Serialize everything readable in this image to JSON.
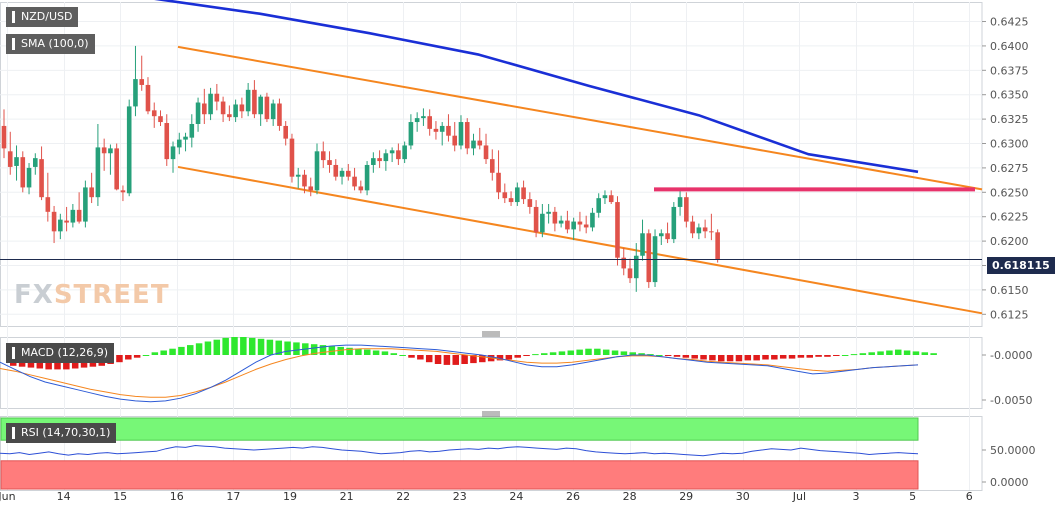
{
  "symbol_label": "NZD/USD",
  "sma_label": "SMA (100,0)",
  "macd_label": "MACD (12,26,9)",
  "rsi_label": "RSI (14,70,30,1)",
  "current_price": "0.618115",
  "watermark": {
    "part1": "FX",
    "part2": "STREET"
  },
  "colors": {
    "up": "#26a07a",
    "down": "#e0524a",
    "sma": "#1a2fd6",
    "channel": "#f5861f",
    "resistance": "#e8336b",
    "macd_hist_up": "#2ee82e",
    "macd_hist_down": "#e01b1b",
    "macd_line": "#2d5bd6",
    "signal_line": "#f5861f",
    "rsi_line": "#2d4fd6",
    "rsi_overbought": "#77f777",
    "rsi_oversold": "#ff7c7c"
  },
  "chart_data": {
    "type": "candlestick",
    "x_ticks": [
      "Jun",
      "14",
      "15",
      "16",
      "17",
      "19",
      "21",
      "22",
      "23",
      "24",
      "26",
      "28",
      "29",
      "30",
      "Jul",
      "3",
      "5",
      "6"
    ],
    "y_ticks": [
      "0.6425",
      "0.6400",
      "0.6375",
      "0.6350",
      "0.6325",
      "0.6300",
      "0.6275",
      "0.6250",
      "0.6225",
      "0.6200",
      "0.6175",
      "0.6150",
      "0.6125"
    ],
    "ylim": [
      0.6113,
      0.6445
    ],
    "candles": [
      {
        "o": 0.6318,
        "h": 0.6335,
        "l": 0.6285,
        "c": 0.6295
      },
      {
        "o": 0.6292,
        "h": 0.6312,
        "l": 0.6268,
        "c": 0.6276
      },
      {
        "o": 0.6277,
        "h": 0.6298,
        "l": 0.6262,
        "c": 0.6286
      },
      {
        "o": 0.6286,
        "h": 0.6292,
        "l": 0.625,
        "c": 0.6255
      },
      {
        "o": 0.6255,
        "h": 0.628,
        "l": 0.6248,
        "c": 0.6275
      },
      {
        "o": 0.6276,
        "h": 0.629,
        "l": 0.6268,
        "c": 0.6285
      },
      {
        "o": 0.6284,
        "h": 0.6297,
        "l": 0.6242,
        "c": 0.6245
      },
      {
        "o": 0.6245,
        "h": 0.627,
        "l": 0.622,
        "c": 0.623
      },
      {
        "o": 0.623,
        "h": 0.6236,
        "l": 0.6198,
        "c": 0.621
      },
      {
        "o": 0.621,
        "h": 0.6228,
        "l": 0.6202,
        "c": 0.6222
      },
      {
        "o": 0.6221,
        "h": 0.6235,
        "l": 0.621,
        "c": 0.6219
      },
      {
        "o": 0.6219,
        "h": 0.6238,
        "l": 0.6214,
        "c": 0.6232
      },
      {
        "o": 0.6232,
        "h": 0.625,
        "l": 0.6218,
        "c": 0.622
      },
      {
        "o": 0.622,
        "h": 0.6262,
        "l": 0.6214,
        "c": 0.6255
      },
      {
        "o": 0.6255,
        "h": 0.627,
        "l": 0.6239,
        "c": 0.6245
      },
      {
        "o": 0.6245,
        "h": 0.632,
        "l": 0.6236,
        "c": 0.6296
      },
      {
        "o": 0.6296,
        "h": 0.6305,
        "l": 0.6272,
        "c": 0.629
      },
      {
        "o": 0.629,
        "h": 0.6299,
        "l": 0.6268,
        "c": 0.6295
      },
      {
        "o": 0.6295,
        "h": 0.63,
        "l": 0.6252,
        "c": 0.6253
      },
      {
        "o": 0.6252,
        "h": 0.6257,
        "l": 0.6241,
        "c": 0.625
      },
      {
        "o": 0.6249,
        "h": 0.6345,
        "l": 0.6246,
        "c": 0.6338
      },
      {
        "o": 0.6338,
        "h": 0.64,
        "l": 0.6328,
        "c": 0.6366
      },
      {
        "o": 0.6366,
        "h": 0.639,
        "l": 0.6354,
        "c": 0.636
      },
      {
        "o": 0.636,
        "h": 0.6368,
        "l": 0.633,
        "c": 0.6333
      },
      {
        "o": 0.6334,
        "h": 0.6342,
        "l": 0.6316,
        "c": 0.6328
      },
      {
        "o": 0.6328,
        "h": 0.6334,
        "l": 0.6318,
        "c": 0.6322
      },
      {
        "o": 0.6321,
        "h": 0.633,
        "l": 0.6277,
        "c": 0.6284
      },
      {
        "o": 0.6284,
        "h": 0.6302,
        "l": 0.627,
        "c": 0.6297
      },
      {
        "o": 0.6296,
        "h": 0.6311,
        "l": 0.6289,
        "c": 0.6304
      },
      {
        "o": 0.6304,
        "h": 0.6311,
        "l": 0.6292,
        "c": 0.6307
      },
      {
        "o": 0.6306,
        "h": 0.633,
        "l": 0.6296,
        "c": 0.632
      },
      {
        "o": 0.632,
        "h": 0.6347,
        "l": 0.6312,
        "c": 0.6342
      },
      {
        "o": 0.6341,
        "h": 0.6356,
        "l": 0.632,
        "c": 0.633
      },
      {
        "o": 0.633,
        "h": 0.6357,
        "l": 0.6324,
        "c": 0.6351
      },
      {
        "o": 0.6351,
        "h": 0.6361,
        "l": 0.6334,
        "c": 0.6343
      },
      {
        "o": 0.6343,
        "h": 0.6348,
        "l": 0.6322,
        "c": 0.633
      },
      {
        "o": 0.633,
        "h": 0.6339,
        "l": 0.6323,
        "c": 0.6327
      },
      {
        "o": 0.6327,
        "h": 0.6345,
        "l": 0.6322,
        "c": 0.634
      },
      {
        "o": 0.634,
        "h": 0.6347,
        "l": 0.6326,
        "c": 0.6333
      },
      {
        "o": 0.6333,
        "h": 0.6362,
        "l": 0.6328,
        "c": 0.6355
      },
      {
        "o": 0.6355,
        "h": 0.6365,
        "l": 0.6326,
        "c": 0.633
      },
      {
        "o": 0.633,
        "h": 0.635,
        "l": 0.6318,
        "c": 0.6348
      },
      {
        "o": 0.6348,
        "h": 0.6352,
        "l": 0.6322,
        "c": 0.6325
      },
      {
        "o": 0.6325,
        "h": 0.6345,
        "l": 0.6318,
        "c": 0.6341
      },
      {
        "o": 0.6341,
        "h": 0.6346,
        "l": 0.6313,
        "c": 0.6318
      },
      {
        "o": 0.6318,
        "h": 0.6323,
        "l": 0.6298,
        "c": 0.6305
      },
      {
        "o": 0.6305,
        "h": 0.631,
        "l": 0.626,
        "c": 0.6266
      },
      {
        "o": 0.6266,
        "h": 0.6275,
        "l": 0.6254,
        "c": 0.6268
      },
      {
        "o": 0.6268,
        "h": 0.6273,
        "l": 0.6249,
        "c": 0.6256
      },
      {
        "o": 0.6256,
        "h": 0.6265,
        "l": 0.6246,
        "c": 0.6252
      },
      {
        "o": 0.6252,
        "h": 0.63,
        "l": 0.6248,
        "c": 0.6292
      },
      {
        "o": 0.6292,
        "h": 0.6302,
        "l": 0.6275,
        "c": 0.6283
      },
      {
        "o": 0.6283,
        "h": 0.6292,
        "l": 0.627,
        "c": 0.6278
      },
      {
        "o": 0.6278,
        "h": 0.6284,
        "l": 0.6262,
        "c": 0.6266
      },
      {
        "o": 0.6266,
        "h": 0.6275,
        "l": 0.6258,
        "c": 0.6272
      },
      {
        "o": 0.6272,
        "h": 0.6279,
        "l": 0.6262,
        "c": 0.6266
      },
      {
        "o": 0.6266,
        "h": 0.6275,
        "l": 0.6252,
        "c": 0.6256
      },
      {
        "o": 0.6256,
        "h": 0.6262,
        "l": 0.6249,
        "c": 0.6252
      },
      {
        "o": 0.6252,
        "h": 0.6282,
        "l": 0.6247,
        "c": 0.6278
      },
      {
        "o": 0.6278,
        "h": 0.6291,
        "l": 0.627,
        "c": 0.6285
      },
      {
        "o": 0.6285,
        "h": 0.6293,
        "l": 0.6275,
        "c": 0.6282
      },
      {
        "o": 0.6282,
        "h": 0.6294,
        "l": 0.6272,
        "c": 0.629
      },
      {
        "o": 0.629,
        "h": 0.6296,
        "l": 0.6281,
        "c": 0.6293
      },
      {
        "o": 0.6293,
        "h": 0.63,
        "l": 0.6278,
        "c": 0.6284
      },
      {
        "o": 0.6284,
        "h": 0.6302,
        "l": 0.628,
        "c": 0.6298
      },
      {
        "o": 0.6298,
        "h": 0.633,
        "l": 0.6294,
        "c": 0.6322
      },
      {
        "o": 0.6322,
        "h": 0.6332,
        "l": 0.6312,
        "c": 0.6326
      },
      {
        "o": 0.6326,
        "h": 0.6336,
        "l": 0.6318,
        "c": 0.6328
      },
      {
        "o": 0.6328,
        "h": 0.6335,
        "l": 0.6308,
        "c": 0.6315
      },
      {
        "o": 0.6315,
        "h": 0.6323,
        "l": 0.6304,
        "c": 0.6312
      },
      {
        "o": 0.6312,
        "h": 0.6322,
        "l": 0.6298,
        "c": 0.6318
      },
      {
        "o": 0.6318,
        "h": 0.633,
        "l": 0.6302,
        "c": 0.6308
      },
      {
        "o": 0.6308,
        "h": 0.6322,
        "l": 0.6292,
        "c": 0.6298
      },
      {
        "o": 0.6298,
        "h": 0.6329,
        "l": 0.6294,
        "c": 0.6322
      },
      {
        "o": 0.6322,
        "h": 0.6326,
        "l": 0.6289,
        "c": 0.6295
      },
      {
        "o": 0.6295,
        "h": 0.631,
        "l": 0.6288,
        "c": 0.6303
      },
      {
        "o": 0.6303,
        "h": 0.6316,
        "l": 0.6294,
        "c": 0.6298
      },
      {
        "o": 0.6298,
        "h": 0.631,
        "l": 0.6279,
        "c": 0.6284
      },
      {
        "o": 0.6284,
        "h": 0.6294,
        "l": 0.6262,
        "c": 0.627
      },
      {
        "o": 0.627,
        "h": 0.6293,
        "l": 0.6243,
        "c": 0.625
      },
      {
        "o": 0.625,
        "h": 0.6259,
        "l": 0.6239,
        "c": 0.6244
      },
      {
        "o": 0.6244,
        "h": 0.6251,
        "l": 0.6236,
        "c": 0.624
      },
      {
        "o": 0.624,
        "h": 0.626,
        "l": 0.6236,
        "c": 0.6255
      },
      {
        "o": 0.6255,
        "h": 0.6262,
        "l": 0.6238,
        "c": 0.6243
      },
      {
        "o": 0.6243,
        "h": 0.625,
        "l": 0.6228,
        "c": 0.6235
      },
      {
        "o": 0.6235,
        "h": 0.6242,
        "l": 0.6204,
        "c": 0.6209
      },
      {
        "o": 0.6209,
        "h": 0.6238,
        "l": 0.6204,
        "c": 0.6228
      },
      {
        "o": 0.6228,
        "h": 0.6238,
        "l": 0.6218,
        "c": 0.623
      },
      {
        "o": 0.623,
        "h": 0.6235,
        "l": 0.621,
        "c": 0.6218
      },
      {
        "o": 0.6218,
        "h": 0.6226,
        "l": 0.6214,
        "c": 0.6221
      },
      {
        "o": 0.6221,
        "h": 0.6231,
        "l": 0.6208,
        "c": 0.6212
      },
      {
        "o": 0.6212,
        "h": 0.6224,
        "l": 0.6201,
        "c": 0.622
      },
      {
        "o": 0.622,
        "h": 0.623,
        "l": 0.621,
        "c": 0.6217
      },
      {
        "o": 0.6217,
        "h": 0.6226,
        "l": 0.6208,
        "c": 0.6214
      },
      {
        "o": 0.6214,
        "h": 0.6234,
        "l": 0.621,
        "c": 0.6229
      },
      {
        "o": 0.6229,
        "h": 0.6249,
        "l": 0.6224,
        "c": 0.6244
      },
      {
        "o": 0.6244,
        "h": 0.6252,
        "l": 0.6238,
        "c": 0.6247
      },
      {
        "o": 0.6247,
        "h": 0.6252,
        "l": 0.6238,
        "c": 0.624
      },
      {
        "o": 0.624,
        "h": 0.6246,
        "l": 0.6175,
        "c": 0.6183
      },
      {
        "o": 0.6183,
        "h": 0.6193,
        "l": 0.6165,
        "c": 0.6172
      },
      {
        "o": 0.6172,
        "h": 0.6182,
        "l": 0.6157,
        "c": 0.6162
      },
      {
        "o": 0.6162,
        "h": 0.6198,
        "l": 0.6148,
        "c": 0.6185
      },
      {
        "o": 0.6185,
        "h": 0.6222,
        "l": 0.618,
        "c": 0.6208
      },
      {
        "o": 0.6208,
        "h": 0.6212,
        "l": 0.6152,
        "c": 0.6158
      },
      {
        "o": 0.6158,
        "h": 0.6212,
        "l": 0.6153,
        "c": 0.6205
      },
      {
        "o": 0.6205,
        "h": 0.6212,
        "l": 0.6196,
        "c": 0.6208
      },
      {
        "o": 0.6208,
        "h": 0.6219,
        "l": 0.6198,
        "c": 0.6202
      },
      {
        "o": 0.6202,
        "h": 0.624,
        "l": 0.6198,
        "c": 0.6235
      },
      {
        "o": 0.6235,
        "h": 0.6252,
        "l": 0.6226,
        "c": 0.6245
      },
      {
        "o": 0.6245,
        "h": 0.625,
        "l": 0.6214,
        "c": 0.622
      },
      {
        "o": 0.622,
        "h": 0.6226,
        "l": 0.6203,
        "c": 0.6208
      },
      {
        "o": 0.6208,
        "h": 0.6218,
        "l": 0.6202,
        "c": 0.6214
      },
      {
        "o": 0.6214,
        "h": 0.6222,
        "l": 0.6203,
        "c": 0.621
      },
      {
        "o": 0.621,
        "h": 0.6228,
        "l": 0.6201,
        "c": 0.6209
      },
      {
        "o": 0.6209,
        "h": 0.6212,
        "l": 0.6178,
        "c": 0.6181
      }
    ],
    "sma100": [
      [
        0.6445,
        0.6449
      ],
      [
        0.64,
        0.6433
      ],
      [
        0.635,
        0.6413
      ],
      [
        0.63,
        0.6391
      ],
      [
        0.625,
        0.6359
      ],
      [
        0.62,
        0.6329
      ],
      [
        0.615,
        0.6289
      ],
      [
        0.61,
        0.6271
      ]
    ],
    "channel_upper": [
      [
        0.6399,
        0.6253
      ]
    ],
    "channel_lower": [
      [
        0.6276,
        0.6126
      ]
    ],
    "resistance_level": 0.6253,
    "macd_y_ticks": [
      "-0.0000",
      "-0.0050"
    ],
    "macd_histogram": [
      -0.0012,
      -0.0013,
      -0.0014,
      -0.0015,
      -0.0016,
      -0.0016,
      -0.0016,
      -0.0015,
      -0.0014,
      -0.0013,
      -0.0012,
      -0.001,
      -0.0008,
      -0.0005,
      -0.0003,
      0.0,
      0.0003,
      0.0005,
      0.0007,
      0.0009,
      0.0011,
      0.0013,
      0.0015,
      0.0017,
      0.0019,
      0.002,
      0.002,
      0.0019,
      0.0018,
      0.0017,
      0.0016,
      0.0015,
      0.0014,
      0.0013,
      0.0012,
      0.0011,
      0.001,
      0.0009,
      0.0008,
      0.0007,
      0.0006,
      0.0005,
      0.0004,
      0.0002,
      0.0,
      -0.0003,
      -0.0005,
      -0.0008,
      -0.001,
      -0.0011,
      -0.0011,
      -0.001,
      -0.0009,
      -0.0008,
      -0.0007,
      -0.0006,
      -0.0005,
      -0.0003,
      -0.0001,
      0.0001,
      0.0002,
      0.0003,
      0.0004,
      0.0005,
      0.0006,
      0.0007,
      0.0007,
      0.0006,
      0.0005,
      0.0004,
      0.0003,
      0.0002,
      0.0001,
      0.0,
      -0.0001,
      -0.0002,
      -0.0003,
      -0.0004,
      -0.0005,
      -0.0006,
      -0.0007,
      -0.0007,
      -0.0007,
      -0.0006,
      -0.0006,
      -0.0005,
      -0.0005,
      -0.0004,
      -0.0004,
      -0.0003,
      -0.0003,
      -0.0002,
      -0.0002,
      -0.0001,
      0.0,
      0.0001,
      0.0002,
      0.0003,
      0.0004,
      0.0005,
      0.0006,
      0.0005,
      0.0004,
      0.0003,
      0.0002
    ],
    "macd_line": [
      -0.0008,
      -0.0016,
      -0.0024,
      -0.003,
      -0.0034,
      -0.0038,
      -0.0042,
      -0.0046,
      -0.0049,
      -0.0051,
      -0.0052,
      -0.0051,
      -0.0048,
      -0.0043,
      -0.0036,
      -0.0028,
      -0.0018,
      -0.0008,
      0.0,
      0.0004,
      0.0006,
      0.0008,
      0.001,
      0.0011,
      0.0011,
      0.001,
      0.0009,
      0.0008,
      0.0007,
      0.0006,
      0.0004,
      0.0002,
      0.0,
      -0.0003,
      -0.0007,
      -0.0011,
      -0.0013,
      -0.0013,
      -0.0011,
      -0.0008,
      -0.0005,
      -0.0002,
      0.0,
      0.0,
      -0.0002,
      -0.0004,
      -0.0006,
      -0.0008,
      -0.0009,
      -0.001,
      -0.0011,
      -0.0012,
      -0.0015,
      -0.0018,
      -0.0021,
      -0.002,
      -0.0018,
      -0.0016,
      -0.0014,
      -0.0013,
      -0.0012,
      -0.0011
    ],
    "signal_line": [
      -0.0015,
      -0.0018,
      -0.0022,
      -0.0026,
      -0.003,
      -0.0034,
      -0.0038,
      -0.0041,
      -0.0044,
      -0.0046,
      -0.0047,
      -0.0047,
      -0.0045,
      -0.0041,
      -0.0036,
      -0.003,
      -0.0023,
      -0.0016,
      -0.001,
      -0.0005,
      -0.0001,
      0.0002,
      0.0004,
      0.0006,
      0.0007,
      0.0007,
      0.0007,
      0.0006,
      0.0005,
      0.0004,
      0.0002,
      0.0,
      -0.0002,
      -0.0004,
      -0.0006,
      -0.0008,
      -0.0009,
      -0.0009,
      -0.0008,
      -0.0006,
      -0.0004,
      -0.0002,
      -0.0001,
      -0.0001,
      -0.0002,
      -0.0004,
      -0.0005,
      -0.0007,
      -0.0008,
      -0.0009,
      -0.001,
      -0.0011,
      -0.0013,
      -0.0015,
      -0.0017,
      -0.0018,
      -0.0017,
      -0.0016,
      -0.0014,
      -0.0013,
      -0.0012,
      -0.0011
    ],
    "rsi_y_ticks": [
      "50.0000",
      "0.0000"
    ],
    "rsi_overbought": 70,
    "rsi_oversold": 30,
    "rsi": [
      45,
      44,
      46,
      43,
      45,
      47,
      44,
      42,
      44,
      43,
      45,
      46,
      44,
      45,
      46,
      47,
      48,
      52,
      55,
      54,
      57,
      56,
      55,
      53,
      52,
      51,
      50,
      51,
      52,
      53,
      54,
      53,
      55,
      54,
      52,
      50,
      49,
      48,
      46,
      44,
      45,
      46,
      48,
      49,
      47,
      48,
      50,
      51,
      52,
      51,
      53,
      52,
      54,
      55,
      54,
      53,
      52,
      51,
      53,
      52,
      49,
      47,
      46,
      45,
      44,
      45,
      46,
      44,
      45,
      44,
      43,
      42,
      41,
      43,
      45,
      44,
      45,
      48,
      50,
      52,
      51,
      50,
      53,
      51,
      49,
      48,
      47,
      46,
      45,
      43,
      44,
      45,
      46,
      45,
      44
    ]
  }
}
